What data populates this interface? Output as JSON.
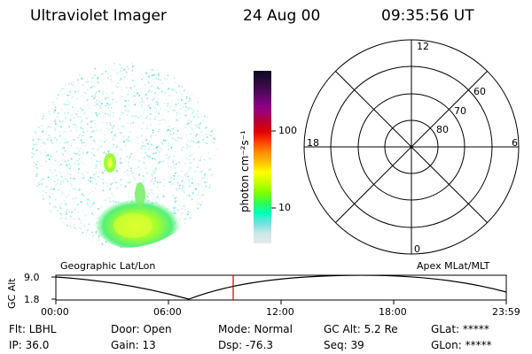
{
  "header": {
    "title": "Ultraviolet Imager",
    "date": "24 Aug 00",
    "time": "09:35:56 UT"
  },
  "colorbar": {
    "unit_label": "photon cm⁻²s⁻¹",
    "ticks": [
      "100",
      "10"
    ],
    "colors": [
      "#0b0b20",
      "#2a0b3a",
      "#4a0a55",
      "#7a0080",
      "#9a007a",
      "#b80030",
      "#e00000",
      "#ff4000",
      "#ff8c00",
      "#ffbf00",
      "#ffff00",
      "#c8ff00",
      "#80ff00",
      "#30ff50",
      "#00ffbb",
      "#70e0e0",
      "#c8e8e8",
      "#e8e8e8"
    ]
  },
  "image_panel": {
    "label": "Geographic Lat/Lon"
  },
  "polar_grid": {
    "label": "Apex MLat/MLT",
    "mlt_labels": [
      "12",
      "18",
      "6",
      "0"
    ],
    "lat_labels": [
      "60",
      "70",
      "80"
    ]
  },
  "timeline": {
    "y_axis_label": "GC Alt",
    "y_ticks": [
      "9.0",
      "1.8"
    ],
    "x_ticks": [
      "00:00",
      "06:00",
      "12:00",
      "18:00",
      "23:59"
    ],
    "marker_color": "#cc0000"
  },
  "status": {
    "filter": "Flt: LBHL",
    "door": "Door: Open",
    "mode": "Mode: Normal",
    "gc_alt": "GC Alt: 5.2 Re",
    "glat": "GLat: *****",
    "ip": "IP: 36.0",
    "gain": "Gain: 13",
    "dsp": "Dsp:  -76.3",
    "seq": "Seq: 39",
    "glon": "GLon: *****"
  }
}
